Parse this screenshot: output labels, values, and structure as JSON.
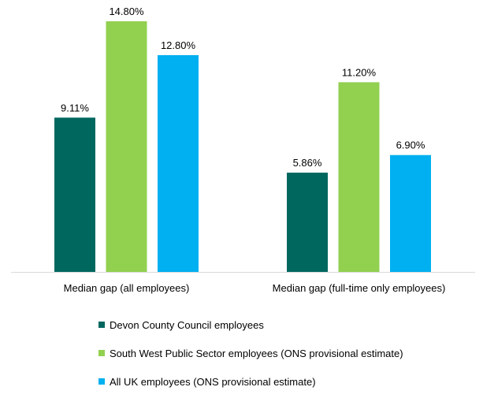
{
  "chart_data": {
    "type": "bar",
    "title": "",
    "xlabel": "",
    "ylabel": "",
    "ylim": [
      0,
      14.8
    ],
    "grid": false,
    "legend_placement": "bottom",
    "categories": [
      "Median gap (all employees)",
      "Median gap (full-time only employees)"
    ],
    "series": [
      {
        "name": "Devon County Council employees",
        "color": "#00675F",
        "values": [
          9.11,
          5.86
        ],
        "labels": [
          "9.11%",
          "5.86%"
        ]
      },
      {
        "name": "South West Public Sector employees (ONS provisional estimate)",
        "color": "#92D050",
        "values": [
          14.8,
          11.2
        ],
        "labels": [
          "14.80%",
          "11.20%"
        ]
      },
      {
        "name": "All UK employees (ONS provisional estimate)",
        "color": "#00B0F0",
        "values": [
          12.8,
          6.9
        ],
        "labels": [
          "12.80%",
          "6.90%"
        ]
      }
    ]
  }
}
